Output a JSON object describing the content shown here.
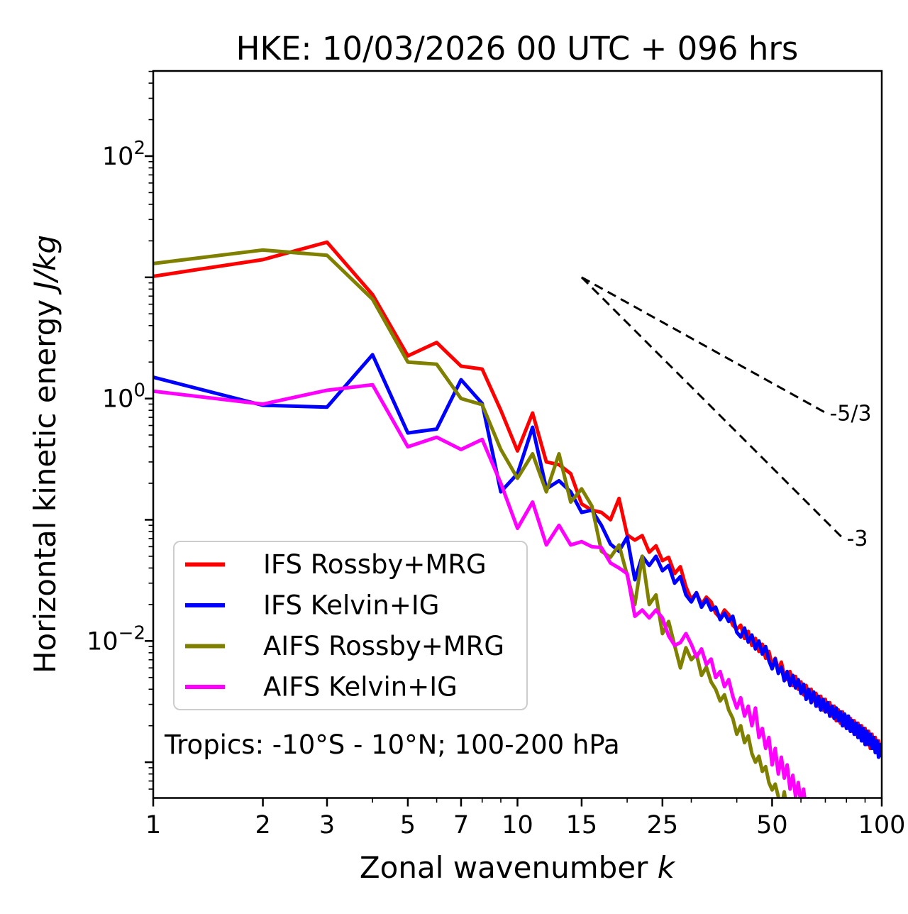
{
  "title": "HKE: 10/03/2026 00 UTC + 096 hrs",
  "annotation": "Tropics: -10°S - 10°N; 100-200 hPa",
  "axes": {
    "xlabel_text": "Zonal wavenumber ",
    "xlabel_math": "k",
    "ylabel_text": "Horizontal kinetic energy ",
    "ylabel_math": "J/kg"
  },
  "legend": {
    "items": [
      {
        "label": "IFS Rossby+MRG",
        "color": "#ff0000"
      },
      {
        "label": "IFS Kelvin+IG",
        "color": "#0000ff"
      },
      {
        "label": "AIFS Rossby+MRG",
        "color": "#808000"
      },
      {
        "label": "AIFS Kelvin+IG",
        "color": "#ff00ff"
      }
    ]
  },
  "chart_data": {
    "type": "line",
    "title": "HKE: 10/03/2026 00 UTC + 096 hrs",
    "xlabel": "Zonal wavenumber k",
    "ylabel": "Horizontal kinetic energy J/kg",
    "xscale": "log",
    "yscale": "log",
    "xlim": [
      1,
      100
    ],
    "ylim": [
      0.000507,
      504
    ],
    "grid": false,
    "legend_position": "lower left",
    "x_ticks": {
      "major": [
        1,
        2,
        3,
        5,
        7,
        10,
        15,
        25,
        50,
        100
      ],
      "minor": [
        4,
        6,
        8,
        9,
        20,
        30,
        40,
        60,
        70,
        80,
        90
      ]
    },
    "y_ticks": {
      "decade_exponents": [
        2,
        1,
        0,
        -1,
        -2,
        -3
      ],
      "labeled_exponents": [
        2,
        0,
        -2
      ]
    },
    "guide_lines": [
      {
        "label": "-5/3",
        "x": [
          15,
          70
        ],
        "y": [
          10,
          0.766
        ],
        "style": "dashed",
        "color": "#000000"
      },
      {
        "label": "-3",
        "x": [
          15,
          78
        ],
        "y": [
          10,
          0.071
        ],
        "style": "dashed",
        "color": "#000000"
      }
    ],
    "series": [
      {
        "name": "IFS Rossby+MRG",
        "color": "#ff0000",
        "x": [
          1,
          2,
          3,
          4,
          5,
          6,
          7,
          8,
          9,
          10,
          11,
          12,
          13,
          14,
          15,
          16,
          17,
          18,
          19,
          20,
          21,
          22,
          23,
          24,
          25,
          26,
          27,
          28,
          29,
          30,
          31,
          32,
          33,
          34,
          35,
          36,
          37,
          38,
          39,
          40,
          41,
          42,
          43,
          44,
          45,
          46,
          47,
          48,
          49,
          50,
          51,
          52,
          53,
          54,
          55,
          56,
          57,
          58,
          59,
          60,
          61,
          62,
          63,
          64,
          65,
          66,
          67,
          68,
          69,
          70,
          71,
          72,
          73,
          74,
          75,
          76,
          77,
          78,
          79,
          80,
          81,
          82,
          83,
          84,
          85,
          86,
          87,
          88,
          89,
          90,
          91,
          92,
          93,
          94,
          95,
          96,
          97,
          98,
          99,
          100
        ],
        "y": [
          10.2,
          14.0,
          19.5,
          7.2,
          2.25,
          2.9,
          1.85,
          1.75,
          0.8,
          0.37,
          0.76,
          0.3,
          0.285,
          0.24,
          0.135,
          0.12,
          0.115,
          0.1,
          0.15,
          0.075,
          0.068,
          0.074,
          0.054,
          0.061,
          0.046,
          0.049,
          0.036,
          0.041,
          0.028,
          0.022,
          0.025,
          0.02,
          0.023,
          0.021,
          0.017,
          0.0155,
          0.018,
          0.0165,
          0.0135,
          0.0125,
          0.0135,
          0.0105,
          0.012,
          0.0092,
          0.0105,
          0.0082,
          0.0094,
          0.0072,
          0.0082,
          0.0063,
          0.0072,
          0.0058,
          0.0067,
          0.0052,
          0.0048,
          0.0056,
          0.0043,
          0.0051,
          0.004,
          0.0046,
          0.0036,
          0.0043,
          0.0034,
          0.004,
          0.0032,
          0.0037,
          0.0029,
          0.0035,
          0.0027,
          0.0033,
          0.0026,
          0.0031,
          0.0024,
          0.0029,
          0.0022,
          0.0027,
          0.0021,
          0.0026,
          0.002,
          0.0024,
          0.0019,
          0.0023,
          0.0018,
          0.0022,
          0.0017,
          0.0021,
          0.0016,
          0.002,
          0.0015,
          0.0019,
          0.0014,
          0.0018,
          0.0013,
          0.0017,
          0.0013,
          0.0016,
          0.0012,
          0.0015,
          0.0012,
          0.0014
        ]
      },
      {
        "name": "IFS Kelvin+IG",
        "color": "#0000ff",
        "x": [
          1,
          2,
          3,
          4,
          5,
          6,
          7,
          8,
          9,
          10,
          11,
          12,
          13,
          14,
          15,
          16,
          17,
          18,
          19,
          20,
          21,
          22,
          23,
          24,
          25,
          26,
          27,
          28,
          29,
          30,
          31,
          32,
          33,
          34,
          35,
          36,
          37,
          38,
          39,
          40,
          41,
          42,
          43,
          44,
          45,
          46,
          47,
          48,
          49,
          50,
          51,
          52,
          53,
          54,
          55,
          56,
          57,
          58,
          59,
          60,
          61,
          62,
          63,
          64,
          65,
          66,
          67,
          68,
          69,
          70,
          71,
          72,
          73,
          74,
          75,
          76,
          77,
          78,
          79,
          80,
          81,
          82,
          83,
          84,
          85,
          86,
          87,
          88,
          89,
          90,
          91,
          92,
          93,
          94,
          95,
          96,
          97,
          98,
          99,
          100
        ],
        "y": [
          1.5,
          0.88,
          0.85,
          2.3,
          0.52,
          0.56,
          1.43,
          0.91,
          0.17,
          0.24,
          0.58,
          0.18,
          0.21,
          0.17,
          0.115,
          0.12,
          0.09,
          0.063,
          0.055,
          0.072,
          0.032,
          0.05,
          0.042,
          0.05,
          0.038,
          0.042,
          0.03,
          0.034,
          0.024,
          0.021,
          0.025,
          0.019,
          0.022,
          0.018,
          0.019,
          0.015,
          0.017,
          0.0145,
          0.016,
          0.0118,
          0.0108,
          0.0128,
          0.0098,
          0.0112,
          0.0086,
          0.01,
          0.0078,
          0.009,
          0.0069,
          0.0059,
          0.0071,
          0.0054,
          0.0061,
          0.0047,
          0.0056,
          0.0043,
          0.0052,
          0.0041,
          0.0048,
          0.0037,
          0.0044,
          0.0033,
          0.004,
          0.0031,
          0.0038,
          0.0029,
          0.0035,
          0.0027,
          0.0033,
          0.0026,
          0.0031,
          0.0024,
          0.0029,
          0.0023,
          0.0028,
          0.0022,
          0.0026,
          0.002,
          0.0025,
          0.0019,
          0.0024,
          0.0018,
          0.0022,
          0.0017,
          0.0021,
          0.0016,
          0.002,
          0.0015,
          0.0019,
          0.0014,
          0.0018,
          0.0014,
          0.0017,
          0.0013,
          0.0016,
          0.0012,
          0.0015,
          0.0011,
          0.0014,
          0.0011
        ]
      },
      {
        "name": "AIFS Rossby+MRG",
        "color": "#808000",
        "x": [
          1,
          2,
          3,
          4,
          5,
          6,
          7,
          8,
          9,
          10,
          11,
          12,
          13,
          14,
          15,
          16,
          17,
          18,
          19,
          20,
          21,
          22,
          23,
          24,
          25,
          26,
          27,
          28,
          29,
          30,
          31,
          32,
          33,
          34,
          35,
          36,
          37,
          38,
          39,
          40,
          41,
          42,
          43,
          44,
          45,
          46,
          47,
          48,
          49,
          50,
          51,
          52,
          53,
          54,
          55,
          56,
          57,
          58
        ],
        "y": [
          13.0,
          16.8,
          15.2,
          6.6,
          2.0,
          1.92,
          1.0,
          0.89,
          0.38,
          0.22,
          0.35,
          0.17,
          0.35,
          0.14,
          0.18,
          0.13,
          0.055,
          0.049,
          0.062,
          0.035,
          0.02,
          0.05,
          0.02,
          0.024,
          0.0115,
          0.0145,
          0.0092,
          0.006,
          0.0088,
          0.007,
          0.0078,
          0.0052,
          0.0061,
          0.0046,
          0.004,
          0.0032,
          0.0036,
          0.0027,
          0.0023,
          0.0017,
          0.002,
          0.00145,
          0.00165,
          0.00118,
          0.001,
          0.00112,
          0.00084,
          0.00092,
          0.00068,
          0.00059,
          0.00066,
          0.00052,
          0.00042,
          0.00057,
          0.00038,
          0.00033,
          0.0004,
          0.00028
        ]
      },
      {
        "name": "AIFS Kelvin+IG",
        "color": "#ff00ff",
        "x": [
          1,
          2,
          3,
          4,
          5,
          6,
          7,
          8,
          9,
          10,
          11,
          12,
          13,
          14,
          15,
          16,
          17,
          18,
          19,
          20,
          21,
          22,
          23,
          24,
          25,
          26,
          27,
          28,
          29,
          30,
          31,
          32,
          33,
          34,
          35,
          36,
          37,
          38,
          39,
          40,
          41,
          42,
          43,
          44,
          45,
          46,
          47,
          48,
          49,
          50,
          51,
          52,
          53,
          54,
          55,
          56,
          57,
          58,
          59,
          60,
          61,
          62,
          63,
          64
        ],
        "y": [
          1.15,
          0.9,
          1.17,
          1.3,
          0.4,
          0.48,
          0.38,
          0.46,
          0.2,
          0.085,
          0.14,
          0.062,
          0.09,
          0.062,
          0.066,
          0.06,
          0.059,
          0.044,
          0.04,
          0.036,
          0.016,
          0.018,
          0.0155,
          0.018,
          0.0155,
          0.011,
          0.0092,
          0.0097,
          0.0115,
          0.0094,
          0.0074,
          0.0086,
          0.0064,
          0.0071,
          0.005,
          0.0056,
          0.0042,
          0.0048,
          0.0035,
          0.0028,
          0.0034,
          0.0024,
          0.0029,
          0.002,
          0.0028,
          0.0016,
          0.0019,
          0.0013,
          0.0016,
          0.00095,
          0.0013,
          0.0008,
          0.0011,
          0.00074,
          0.00095,
          0.0006,
          0.00078,
          0.00052,
          0.00068,
          0.00045,
          0.0006,
          0.0004,
          0.0005,
          0.00034
        ]
      }
    ]
  }
}
